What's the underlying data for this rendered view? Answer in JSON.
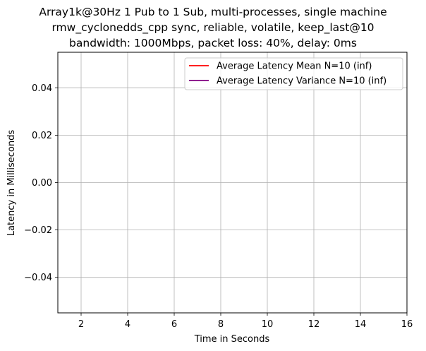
{
  "chart_data": {
    "type": "line",
    "title_lines": [
      "Array1k@30Hz 1 Pub to 1 Sub, multi-processes, single machine",
      "rmw_cyclonedds_cpp sync, reliable, volatile, keep_last@10",
      "bandwidth: 1000Mbps, packet loss: 40%, delay: 0ms"
    ],
    "xlabel": "Time in Seconds",
    "ylabel": "Latency in Milliseconds",
    "xlim": [
      1,
      16
    ],
    "ylim": [
      -0.055,
      0.055
    ],
    "xticks": [
      2,
      4,
      6,
      8,
      10,
      12,
      14,
      16
    ],
    "xtick_labels": [
      "2",
      "4",
      "6",
      "8",
      "10",
      "12",
      "14",
      "16"
    ],
    "yticks": [
      0.04,
      0.02,
      0.0,
      -0.02,
      -0.04
    ],
    "ytick_labels": [
      "0.04",
      "0.02",
      "0.00",
      "−0.02",
      "−0.04"
    ],
    "grid": true,
    "legend_position": "top-right",
    "series": [
      {
        "name": "Average Latency Mean N=10 (inf)",
        "color": "#ff0000",
        "x": [],
        "y": []
      },
      {
        "name": "Average Latency Variance N=10 (inf)",
        "color": "#800080",
        "x": [],
        "y": []
      }
    ]
  }
}
